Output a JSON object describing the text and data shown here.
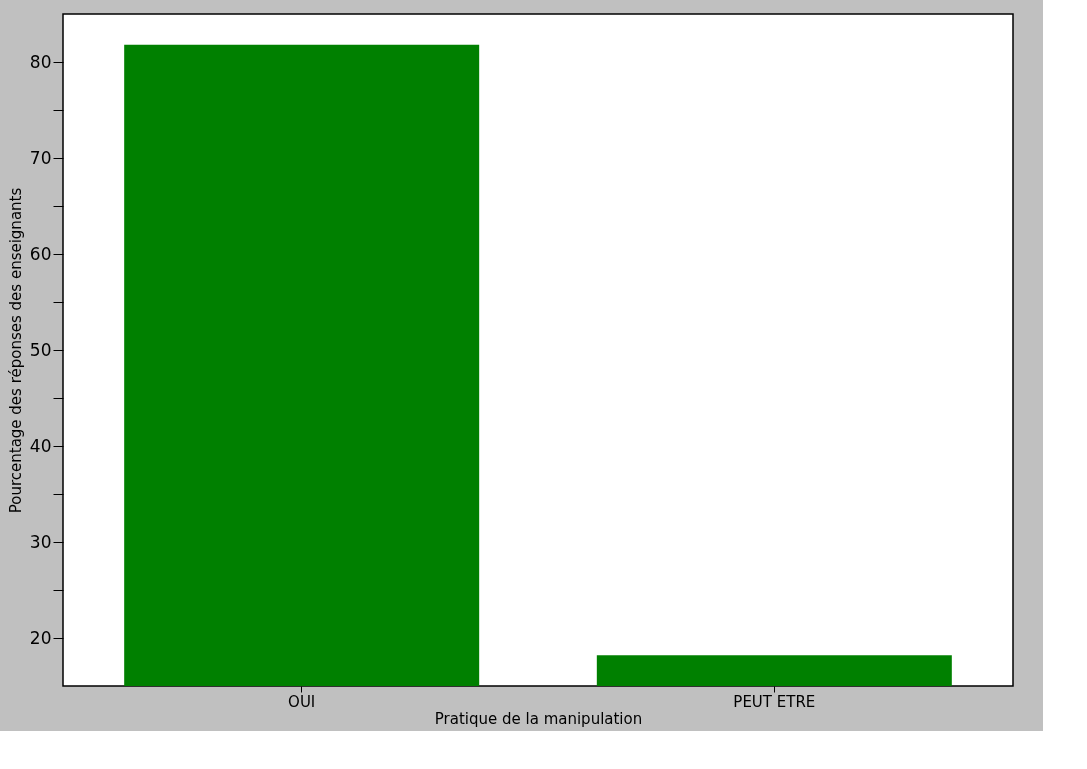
{
  "chart_data": {
    "type": "bar",
    "xlabel": "Pratique de la manipulation",
    "ylabel": "Pourcentage des réponses des enseignants",
    "categories": [
      "OUI",
      "PEUT ETRE"
    ],
    "values": [
      81.8,
      18.2
    ],
    "color": "#008000",
    "ylim": [
      15,
      85
    ],
    "yticks": [
      20,
      {
        "value": 25,
        "label": null
      },
      30,
      {
        "value": 35,
        "label": null
      },
      40,
      {
        "value": 45,
        "label": null
      },
      50,
      {
        "value": 55,
        "label": null
      },
      60,
      {
        "value": 65,
        "label": null
      },
      70,
      {
        "value": 75,
        "label": null
      },
      80
    ],
    "grid": false
  }
}
